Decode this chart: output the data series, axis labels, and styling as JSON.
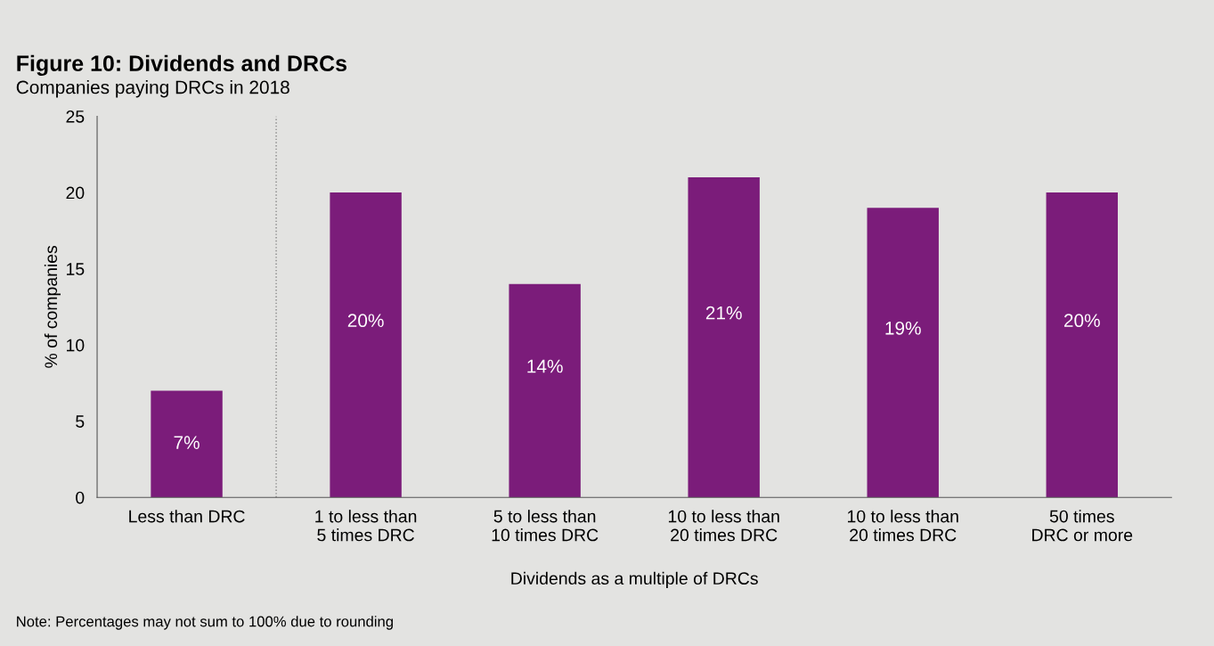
{
  "chart_data": {
    "type": "bar",
    "title": "Figure 10: Dividends and DRCs",
    "subtitle": "Companies paying DRCs in 2018",
    "xlabel": "Dividends as a multiple of DRCs",
    "ylabel": "% of companies",
    "categories": [
      "Less than DRC",
      "1 to less than\n5 times DRC",
      "5 to less than\n10 times DRC",
      "10 to less than\n20 times DRC",
      "10 to less than\n20 times DRC",
      "50 times\nDRC or more"
    ],
    "values": [
      7,
      20,
      14,
      21,
      19,
      20
    ],
    "value_labels": [
      "7%",
      "20%",
      "14%",
      "21%",
      "19%",
      "20%"
    ],
    "color": "#7b1c7a",
    "ylim": [
      0,
      25
    ],
    "yticks": [
      0,
      5,
      10,
      15,
      20,
      25
    ],
    "grid": false,
    "annotations": [
      "Note: Percentages may not sum to 100% due to rounding"
    ]
  }
}
